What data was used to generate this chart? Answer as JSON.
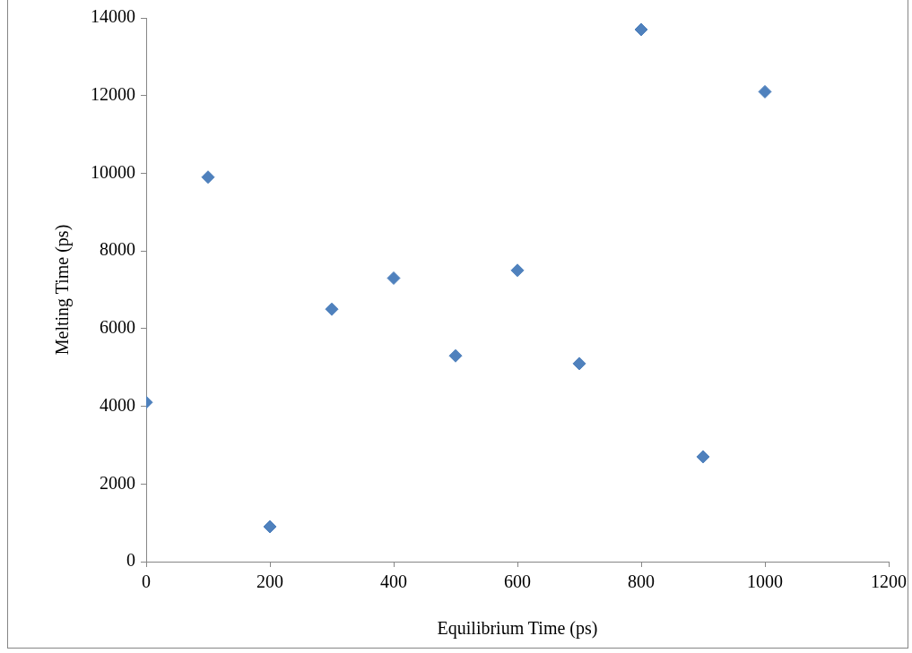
{
  "chart_data": {
    "type": "scatter",
    "xlabel": "Equilibrium Time (ps)",
    "ylabel": "Melting Time (ps)",
    "x": [
      0,
      100,
      200,
      300,
      400,
      500,
      600,
      700,
      800,
      900,
      1000
    ],
    "series": [
      {
        "color": "#4f81bd",
        "values": [
          4100,
          9900,
          900,
          6500,
          7300,
          5300,
          7500,
          5100,
          13700,
          2700,
          12100
        ]
      }
    ],
    "xlim": [
      0,
      1200
    ],
    "xticks": [
      0,
      200,
      400,
      600,
      800,
      1000,
      1200
    ],
    "ylim": [
      0,
      14000
    ],
    "yticks": [
      0,
      2000,
      4000,
      6000,
      8000,
      10000,
      12000,
      14000
    ],
    "grid": false,
    "legend": false,
    "marker": "diamond"
  }
}
